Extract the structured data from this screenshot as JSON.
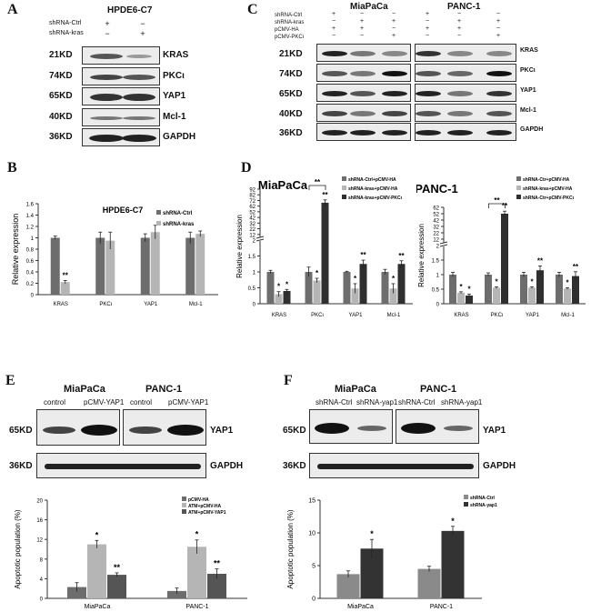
{
  "panelA": {
    "letter": "A",
    "title": "HPDE6-C7",
    "conditions": [
      {
        "label": "shRNA-Ctrl",
        "signs": [
          "+",
          "−"
        ]
      },
      {
        "label": "shRNA-kras",
        "signs": [
          "−",
          "+"
        ]
      }
    ],
    "rows": [
      {
        "kd": "21KD",
        "protein": "KRAS"
      },
      {
        "kd": "74KD",
        "protein": "PKCι"
      },
      {
        "kd": "65KD",
        "protein": "YAP1"
      },
      {
        "kd": "40KD",
        "protein": "Mcl-1"
      },
      {
        "kd": "36KD",
        "protein": "GAPDH"
      }
    ]
  },
  "panelC": {
    "letter": "C",
    "cell_lines": [
      "MiaPaCa",
      "PANC-1"
    ],
    "conditions": [
      {
        "label": "shRNA-Ctrl",
        "signs": [
          "+",
          "−",
          "−",
          "+",
          "−",
          "−"
        ]
      },
      {
        "label": "shRNA-kras",
        "signs": [
          "−",
          "+",
          "+",
          "−",
          "+",
          "+"
        ]
      },
      {
        "label": "pCMV-HA",
        "signs": [
          "+",
          "+",
          "−",
          "+",
          "+",
          "−"
        ]
      },
      {
        "label": "pCMV-PKCι",
        "signs": [
          "−",
          "−",
          "+",
          "−",
          "−",
          "+"
        ]
      }
    ],
    "rows": [
      {
        "kd": "21KD",
        "protein": "KRAS"
      },
      {
        "kd": "74KD",
        "protein": "PKCι"
      },
      {
        "kd": "65KD",
        "protein": "YAP1"
      },
      {
        "kd": "40KD",
        "protein": "Mcl-1"
      },
      {
        "kd": "36KD",
        "protein": "GAPDH"
      }
    ]
  },
  "panelE": {
    "letter": "E",
    "cell_lines": [
      "MiaPaCa",
      "PANC-1"
    ],
    "lane_labels": [
      "control",
      "pCMV-YAP1",
      "control",
      "pCMV-YAP1"
    ],
    "rows": [
      {
        "kd": "65KD",
        "protein": "YAP1"
      },
      {
        "kd": "36KD",
        "protein": "GAPDH"
      }
    ]
  },
  "panelF": {
    "letter": "F",
    "cell_lines": [
      "MiaPaCa",
      "PANC-1"
    ],
    "lane_labels": [
      "shRNA-Ctrl",
      "shRNA-yap1",
      "shRNA-Ctrl",
      "shRNA-yap1"
    ],
    "rows": [
      {
        "kd": "65KD",
        "protein": "YAP1"
      },
      {
        "kd": "36KD",
        "protein": "GAPDH"
      }
    ]
  },
  "panelB_letter": "B",
  "panelD_letter": "D",
  "chart_data": [
    {
      "id": "B",
      "type": "bar",
      "title": "HPDE6-C7",
      "ylabel": "Relative expression",
      "xlabel": "",
      "categories": [
        "KRAS",
        "PKCι",
        "YAP1",
        "Mcl-1"
      ],
      "ylim": [
        0,
        1.6
      ],
      "yticks": [
        "0",
        "0.2",
        "0.4",
        "0.6",
        "0.8",
        "1",
        "1.2",
        "1.4",
        "1.6"
      ],
      "legend": "top-right",
      "series": [
        {
          "name": "shRNA-Ctrl",
          "color": "#6d6d6d",
          "values": [
            1.0,
            1.0,
            1.0,
            1.0
          ],
          "errors": [
            0.03,
            0.1,
            0.07,
            0.1
          ]
        },
        {
          "name": "shRNA-kras",
          "color": "#b5b5b5",
          "values": [
            0.22,
            0.95,
            1.1,
            1.07
          ],
          "errors": [
            0.03,
            0.15,
            0.12,
            0.05
          ]
        }
      ],
      "annotations": [
        {
          "category": 0,
          "series": 1,
          "text": "**"
        }
      ]
    },
    {
      "id": "D1",
      "type": "bar",
      "title": "MiaPaCa",
      "ylabel": "Relative expression",
      "xlabel": "",
      "categories": [
        "KRAS",
        "PKCι",
        "YAP1",
        "Mcl-1"
      ],
      "axis": "broken",
      "yticks": [
        "0",
        "0.5",
        "1",
        "1.5",
        "2",
        "12",
        "22",
        "32",
        "42",
        "52",
        "62",
        "72",
        "82",
        "92"
      ],
      "legend": "top-right",
      "series": [
        {
          "name": "shRNA-Ctrl+pCMV-HA",
          "color": "#6d6d6d",
          "values": [
            1.0,
            1.0,
            1.0,
            1.0
          ],
          "errors": [
            0.05,
            0.15,
            0.02,
            0.08
          ]
        },
        {
          "name": "shRNA-kras+pCMV-HA",
          "color": "#b5b5b5",
          "values": [
            0.3,
            0.73,
            0.48,
            0.48
          ],
          "errors": [
            0.08,
            0.07,
            0.15,
            0.15
          ]
        },
        {
          "name": "shRNA-kras+pCMV-PKCι",
          "color": "#2f2f2f",
          "values": [
            0.4,
            68,
            1.25,
            1.25
          ],
          "errors": [
            0.05,
            5,
            0.12,
            0.1
          ]
        }
      ],
      "annotations": [
        {
          "category": 0,
          "series": 1,
          "text": "*"
        },
        {
          "category": 0,
          "series": 2,
          "text": "*"
        },
        {
          "category": 1,
          "series": 1,
          "text": "*"
        },
        {
          "category": 1,
          "series": 2,
          "text": "**"
        },
        {
          "category": 2,
          "series": 1,
          "text": "*"
        },
        {
          "category": 2,
          "series": 2,
          "text": "**"
        },
        {
          "category": 3,
          "series": 1,
          "text": "*"
        },
        {
          "category": 3,
          "series": 2,
          "text": "**"
        }
      ]
    },
    {
      "id": "D2",
      "type": "bar",
      "title": "PANC-1",
      "ylabel": "Relative expression",
      "xlabel": "",
      "categories": [
        "KRAS",
        "PKCι",
        "YAP1",
        "Mcl-1"
      ],
      "axis": "broken",
      "yticks": [
        "0",
        "0.5",
        "1",
        "1.5",
        "2",
        "12",
        "22",
        "32",
        "42",
        "52",
        "62"
      ],
      "legend": "top-right",
      "series": [
        {
          "name": "shRNA-Ctr+pCMV-HA",
          "color": "#6d6d6d",
          "values": [
            1.0,
            1.0,
            1.0,
            1.0
          ],
          "errors": [
            0.08,
            0.06,
            0.08,
            0.08
          ]
        },
        {
          "name": "shRNA-kras+pCMV-HA",
          "color": "#b5b5b5",
          "values": [
            0.38,
            0.55,
            0.55,
            0.52
          ],
          "errors": [
            0.03,
            0.03,
            0.03,
            0.03
          ]
        },
        {
          "name": "shRNA-Ctr+pCMV-PKCι",
          "color": "#2f2f2f",
          "values": [
            0.28,
            52,
            1.15,
            0.95
          ],
          "errors": [
            0.05,
            4,
            0.15,
            0.15
          ]
        }
      ],
      "annotations": [
        {
          "category": 0,
          "series": 1,
          "text": "*"
        },
        {
          "category": 0,
          "series": 2,
          "text": "*"
        },
        {
          "category": 1,
          "series": 1,
          "text": "*"
        },
        {
          "category": 1,
          "series": 2,
          "text": "**"
        },
        {
          "category": 2,
          "series": 1,
          "text": "*"
        },
        {
          "category": 2,
          "series": 2,
          "text": "**"
        },
        {
          "category": 3,
          "series": 1,
          "text": "*"
        },
        {
          "category": 3,
          "series": 2,
          "text": "**"
        }
      ]
    },
    {
      "id": "E",
      "type": "bar",
      "title": "",
      "ylabel": "Apoptotic population (%)",
      "xlabel": "",
      "categories": [
        "MiaPaCa",
        "PANC-1"
      ],
      "ylim": [
        0,
        20
      ],
      "yticks": [
        "0",
        "4",
        "8",
        "12",
        "16",
        "20"
      ],
      "legend": "top-right",
      "series": [
        {
          "name": "pCMV-HA",
          "color": "#6d6d6d",
          "values": [
            2.3,
            1.5
          ],
          "errors": [
            0.9,
            0.6
          ]
        },
        {
          "name": "ATM+pCMV-HA",
          "color": "#b5b5b5",
          "values": [
            11.0,
            10.5
          ],
          "errors": [
            0.8,
            1.4
          ]
        },
        {
          "name": "ATM+pCMV-YAP1",
          "color": "#555555",
          "values": [
            4.8,
            5.0
          ],
          "errors": [
            0.4,
            1.0
          ]
        }
      ],
      "annotations": [
        {
          "category": 0,
          "series": 1,
          "text": "*"
        },
        {
          "category": 0,
          "series": 2,
          "text": "**"
        },
        {
          "category": 1,
          "series": 1,
          "text": "*"
        },
        {
          "category": 1,
          "series": 2,
          "text": "**"
        }
      ]
    },
    {
      "id": "F",
      "type": "bar",
      "title": "",
      "ylabel": "Apoptotic population (%)",
      "xlabel": "",
      "categories": [
        "MiaPaCa",
        "PANC-1"
      ],
      "ylim": [
        0,
        15
      ],
      "yticks": [
        "0",
        "5",
        "10",
        "15"
      ],
      "legend": "top-left",
      "series": [
        {
          "name": "shRNA-Ctrl",
          "color": "#8a8a8a",
          "values": [
            3.7,
            4.5
          ],
          "errors": [
            0.5,
            0.4
          ]
        },
        {
          "name": "shRNA-yap1",
          "color": "#333333",
          "values": [
            7.6,
            10.3
          ],
          "errors": [
            1.4,
            0.7
          ]
        }
      ],
      "annotations": [
        {
          "category": 0,
          "series": 1,
          "text": "*"
        },
        {
          "category": 1,
          "series": 1,
          "text": "*"
        }
      ]
    }
  ]
}
